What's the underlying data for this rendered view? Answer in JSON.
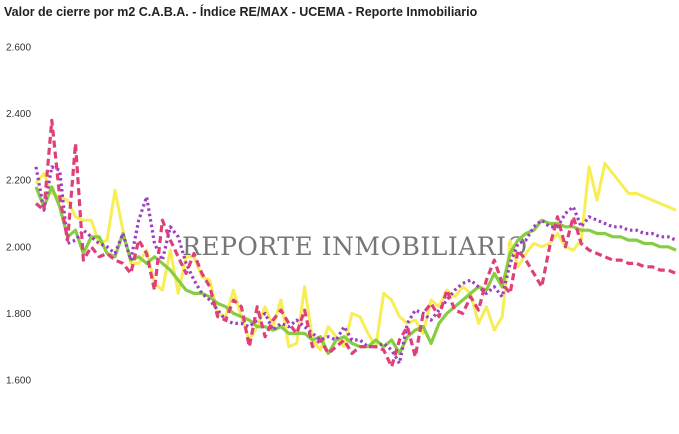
{
  "chart_data": {
    "type": "line",
    "title": "Valor de cierre por m2 C.A.B.A. - Índice RE/MAX - UCEMA - Reporte Inmobiliario",
    "watermark": "REPORTE INMOBILIARIO",
    "ylim": [
      1600,
      2600
    ],
    "yticks": [
      1600,
      1800,
      2000,
      2200,
      2400,
      2600
    ],
    "ytick_labels": [
      "1.600",
      "1.800",
      "2.000",
      "2.200",
      "2.400",
      "2.600"
    ],
    "grid": false,
    "legend": "none",
    "x": [
      1,
      2,
      3,
      4,
      5,
      6,
      7,
      8,
      9,
      10,
      11,
      12,
      13,
      14,
      15,
      16,
      17,
      18,
      19,
      20,
      21,
      22,
      23,
      24,
      25,
      26,
      27,
      28,
      29,
      30,
      31,
      32,
      33,
      34,
      35,
      36,
      37,
      38,
      39,
      40,
      41,
      42,
      43,
      44,
      45,
      46,
      47,
      48,
      49,
      50,
      51,
      52,
      53,
      54,
      55,
      56,
      57,
      58,
      59,
      60,
      61,
      62,
      63,
      64,
      65,
      66,
      67,
      68,
      69,
      70,
      71,
      72,
      73,
      74,
      75,
      76,
      77,
      78,
      79,
      80,
      81,
      82
    ],
    "series": [
      {
        "color": "#f7ee55",
        "style": "solid",
        "values": [
          2190,
          2220,
          2160,
          2150,
          2140,
          2090,
          2080,
          2080,
          2010,
          2020,
          2170,
          2050,
          1950,
          1950,
          1990,
          1890,
          1870,
          1990,
          1860,
          1970,
          1970,
          1910,
          1900,
          1800,
          1790,
          1870,
          1790,
          1720,
          1760,
          1820,
          1760,
          1840,
          1700,
          1710,
          1880,
          1720,
          1690,
          1760,
          1730,
          1700,
          1800,
          1790,
          1740,
          1700,
          1860,
          1840,
          1790,
          1770,
          1780,
          1740,
          1840,
          1820,
          1870,
          1850,
          1880,
          1860,
          1770,
          1820,
          1750,
          1790,
          2020,
          1940,
          1980,
          2010,
          2000,
          2010,
          2040,
          2000,
          1990,
          2020,
          2240,
          2140,
          2250,
          2220,
          2190,
          2160,
          2160,
          2150,
          2140,
          2130,
          2120,
          2110
        ]
      },
      {
        "color": "#88cc44",
        "style": "solid",
        "values": [
          2180,
          2120,
          2180,
          2120,
          2030,
          2050,
          1980,
          2030,
          2030,
          1980,
          1970,
          2040,
          1960,
          1970,
          1950,
          1970,
          1950,
          1930,
          1900,
          1870,
          1860,
          1860,
          1850,
          1830,
          1820,
          1800,
          1790,
          1780,
          1760,
          1760,
          1750,
          1760,
          1740,
          1740,
          1740,
          1720,
          1730,
          1680,
          1720,
          1730,
          1710,
          1700,
          1700,
          1720,
          1700,
          1720,
          1680,
          1730,
          1750,
          1760,
          1710,
          1770,
          1800,
          1820,
          1840,
          1860,
          1880,
          1870,
          1920,
          1880,
          1980,
          2020,
          2040,
          2050,
          2080,
          2070,
          2070,
          2060,
          2060,
          2050,
          2050,
          2040,
          2040,
          2030,
          2030,
          2020,
          2020,
          2010,
          2010,
          2000,
          2000,
          1990
        ]
      },
      {
        "color": "#9b3fc0",
        "style": "dotted",
        "values": [
          2240,
          2110,
          2240,
          2230,
          2010,
          2020,
          2050,
          2030,
          2010,
          2000,
          1980,
          2040,
          1960,
          2080,
          2150,
          2010,
          1960,
          2060,
          2030,
          1950,
          1900,
          1860,
          1840,
          1810,
          1780,
          1770,
          1770,
          1760,
          1780,
          1800,
          1750,
          1770,
          1760,
          1780,
          1760,
          1740,
          1720,
          1730,
          1720,
          1760,
          1720,
          1720,
          1700,
          1700,
          1710,
          1690,
          1650,
          1770,
          1810,
          1800,
          1780,
          1810,
          1840,
          1870,
          1890,
          1900,
          1880,
          1860,
          1880,
          1850,
          1950,
          2010,
          2020,
          2060,
          2080,
          2060,
          2060,
          2100,
          2120,
          2060,
          2090,
          2080,
          2070,
          2060,
          2060,
          2050,
          2050,
          2040,
          2040,
          2030,
          2030,
          2020
        ]
      },
      {
        "color": "#e0407a",
        "style": "dashed",
        "values": [
          2130,
          2110,
          2380,
          2150,
          2020,
          2310,
          1960,
          2000,
          1970,
          1980,
          1960,
          1950,
          1920,
          2020,
          1980,
          1870,
          2080,
          2020,
          1970,
          1920,
          1980,
          1920,
          1880,
          1790,
          1780,
          1840,
          1820,
          1700,
          1820,
          1730,
          1780,
          1810,
          1770,
          1740,
          1810,
          1700,
          1720,
          1680,
          1700,
          1720,
          1680,
          1700,
          1700,
          1700,
          1690,
          1640,
          1720,
          1760,
          1670,
          1800,
          1830,
          1790,
          1870,
          1810,
          1800,
          1850,
          1810,
          1900,
          1960,
          1890,
          1860,
          1990,
          1960,
          1920,
          1880,
          2000,
          2090,
          2000,
          2090,
          2010,
          1990,
          1980,
          1970,
          1960,
          1960,
          1950,
          1950,
          1940,
          1940,
          1930,
          1930,
          1920
        ]
      }
    ]
  }
}
